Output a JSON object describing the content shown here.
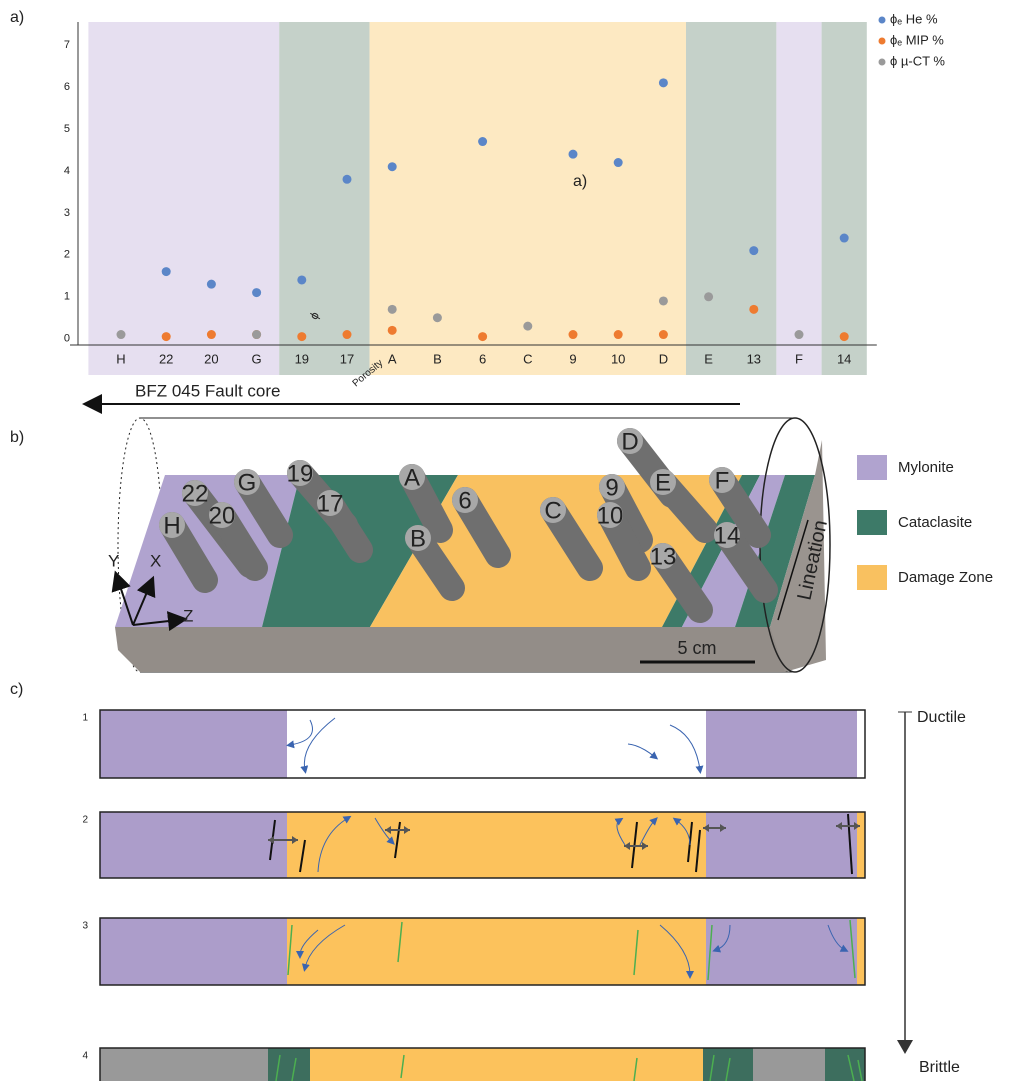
{
  "panel_labels": [
    "a)",
    "b)",
    "c)"
  ],
  "chart_data": {
    "type": "scatter",
    "categories": [
      "H",
      "22",
      "20",
      "G",
      "19",
      "17",
      "A",
      "B",
      "6",
      "C",
      "9",
      "10",
      "D",
      "E",
      "13",
      "F",
      "14"
    ],
    "series": [
      {
        "name": "ϕₑ He %",
        "color": "#5b86c8",
        "values": [
          null,
          1.6,
          1.3,
          1.1,
          1.4,
          3.8,
          4.1,
          null,
          4.7,
          null,
          4.4,
          4.2,
          6.1,
          null,
          2.1,
          null,
          2.4
        ]
      },
      {
        "name": "ϕₑ MIP %",
        "color": "#ee7b30",
        "values": [
          null,
          0.05,
          0.1,
          0.1,
          0.05,
          0.1,
          0.2,
          null,
          0.05,
          null,
          0.1,
          0.1,
          0.1,
          null,
          0.7,
          null,
          0.05
        ]
      },
      {
        "name": "ϕ µ-CT %",
        "color": "#9a9a9a",
        "values": [
          0.1,
          null,
          null,
          0.1,
          null,
          null,
          0.7,
          0.5,
          null,
          0.3,
          null,
          null,
          0.9,
          1.0,
          null,
          0.1,
          null
        ]
      }
    ],
    "ylim": [
      -0.15,
      7.55
    ],
    "yticks": [
      0,
      1,
      2,
      3,
      4,
      5,
      6,
      7
    ],
    "zones": [
      {
        "from": "H",
        "to": "G",
        "color": "#e6dff0"
      },
      {
        "from": "19",
        "to": "17",
        "color": "#c5d1c9"
      },
      {
        "from": "A",
        "to": "D",
        "color": "#fde9c2"
      },
      {
        "from": "E",
        "to": "13",
        "color": "#c5d1c9"
      },
      {
        "from": "F",
        "to": "F",
        "color": "#e6dff0"
      },
      {
        "from": "14",
        "to": "14",
        "color": "#c5d1c9"
      }
    ],
    "annotations": [
      "a)",
      "ϕ",
      "Porosity"
    ],
    "legend": "upper right"
  },
  "arrow_label": "BFZ 045 Fault core",
  "block": {
    "samples": [
      "H",
      "22",
      "20",
      "G",
      "19",
      "17",
      "A",
      "6",
      "B",
      "C",
      "9",
      "10",
      "D",
      "E",
      "13",
      "F",
      "14"
    ],
    "legend": [
      {
        "label": "Mylonite",
        "color": "#b0a3cf"
      },
      {
        "label": "Cataclasite",
        "color": "#3d7a68"
      },
      {
        "label": "Damage Zone",
        "color": "#f9c160"
      }
    ],
    "axes": [
      "X",
      "Y",
      "Z"
    ],
    "scale_bar": "5 cm",
    "lineation": "Lineation"
  },
  "evolution": {
    "rows": [
      "1",
      "2",
      "3",
      "4"
    ],
    "top": "Ductile",
    "bottom": "Brittle"
  }
}
